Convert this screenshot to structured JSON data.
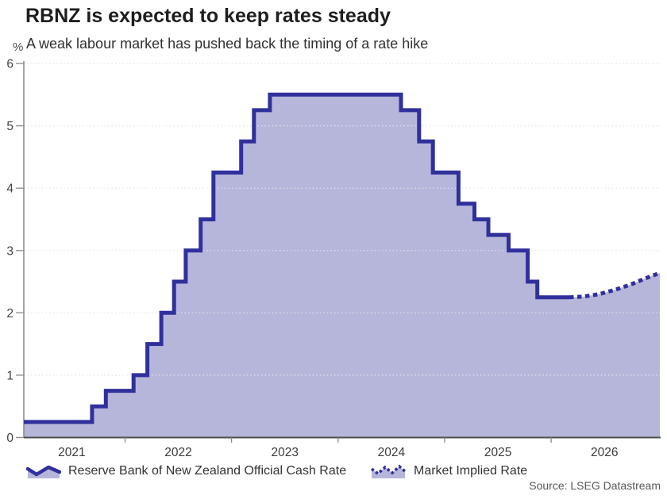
{
  "source": "Source: LSEG Datastream",
  "chart_data": {
    "type": "area",
    "title": "RBNZ is expected to keep rates steady",
    "subtitle": "A weak labour market has pushed back the timing of a rate hike",
    "ylabel": "%",
    "xlabel": "",
    "ylim": [
      0,
      6
    ],
    "yticks": [
      0,
      1,
      2,
      3,
      4,
      5,
      6
    ],
    "x_years": [
      2021,
      2022,
      2023,
      2024,
      2025,
      2026
    ],
    "xlim": [
      2021.05,
      2027.02
    ],
    "grid": "dotted-horizontal",
    "legend_position": "bottom",
    "colors": {
      "line": "#30309c",
      "fill": "#b6b6db",
      "grid": "#e2e2ec",
      "axis": "#8a8a8a",
      "baseline": "#4d4d4d"
    },
    "series": [
      {
        "name": "Reserve Bank of New Zealand Official Cash Rate",
        "type": "step",
        "style": "solid",
        "points": [
          [
            2021.05,
            0.25
          ],
          [
            2021.69,
            0.5
          ],
          [
            2021.82,
            0.75
          ],
          [
            2022.08,
            1.0
          ],
          [
            2022.21,
            1.5
          ],
          [
            2022.34,
            2.0
          ],
          [
            2022.46,
            2.5
          ],
          [
            2022.57,
            3.0
          ],
          [
            2022.71,
            3.5
          ],
          [
            2022.83,
            4.25
          ],
          [
            2023.09,
            4.75
          ],
          [
            2023.21,
            5.25
          ],
          [
            2023.36,
            5.5
          ],
          [
            2024.59,
            5.25
          ],
          [
            2024.76,
            4.75
          ],
          [
            2024.89,
            4.25
          ],
          [
            2025.13,
            3.75
          ],
          [
            2025.28,
            3.5
          ],
          [
            2025.41,
            3.25
          ],
          [
            2025.6,
            3.0
          ],
          [
            2025.78,
            2.5
          ],
          [
            2025.87,
            2.25
          ],
          [
            2026.17,
            2.25
          ]
        ]
      },
      {
        "name": "Market Implied Rate",
        "type": "line",
        "style": "dotted",
        "points": [
          [
            2026.17,
            2.25
          ],
          [
            2026.3,
            2.26
          ],
          [
            2026.45,
            2.3
          ],
          [
            2026.6,
            2.37
          ],
          [
            2026.74,
            2.45
          ],
          [
            2026.88,
            2.55
          ],
          [
            2027.02,
            2.64
          ]
        ]
      }
    ]
  }
}
